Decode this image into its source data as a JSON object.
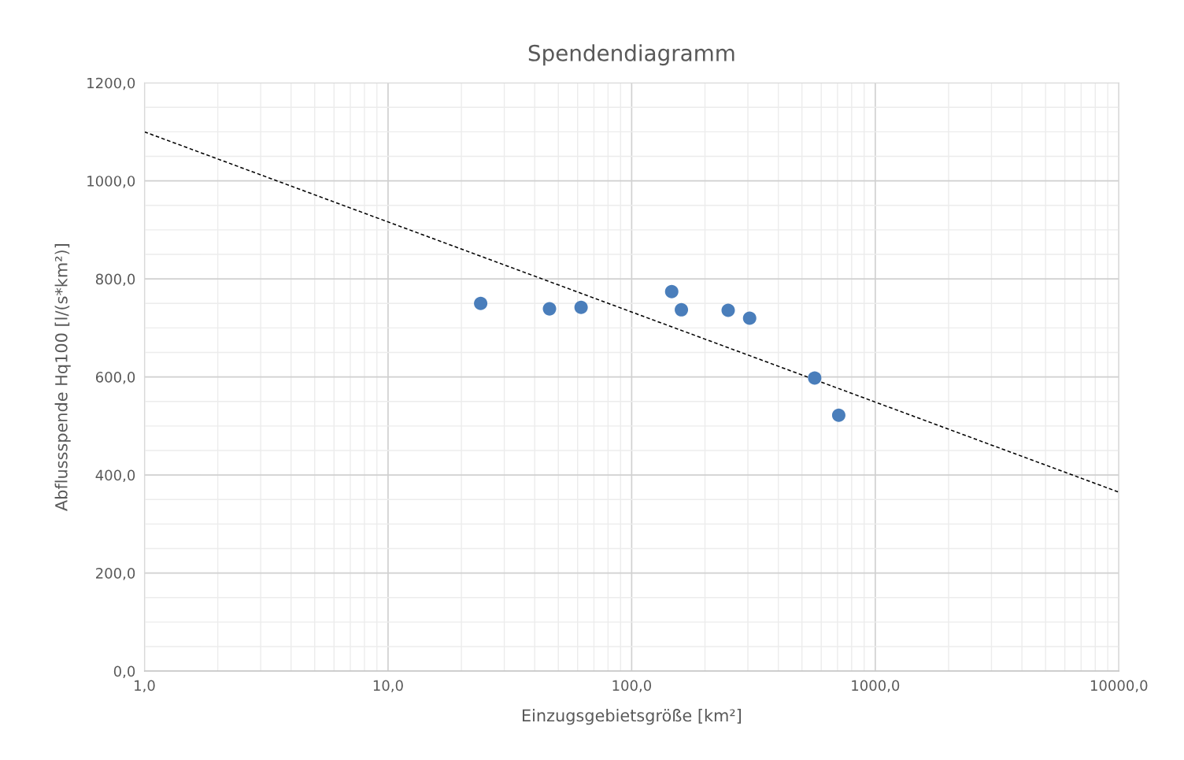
{
  "chart_data": {
    "type": "scatter",
    "title": "Spendendiagramm",
    "xlabel": "Einzugsgebietsgröße [km²]",
    "ylabel": "Abflussspende Hq100 [l/(s*km²)]",
    "log": "x",
    "grid": true,
    "legend": false,
    "marker": "circle",
    "xlim": [
      1,
      10000
    ],
    "xticks": [
      {
        "value": 1,
        "label": "1,0"
      },
      {
        "value": 10,
        "label": "10,0"
      },
      {
        "value": 100,
        "label": "100,0"
      },
      {
        "value": 1000,
        "label": "1000,0"
      },
      {
        "value": 10000,
        "label": "10000,0"
      }
    ],
    "ylim": [
      0,
      1200
    ],
    "yticks": [
      {
        "value": 0,
        "label": "0,0"
      },
      {
        "value": 200,
        "label": "200,0"
      },
      {
        "value": 400,
        "label": "400,0"
      },
      {
        "value": 600,
        "label": "600,0"
      },
      {
        "value": 800,
        "label": "800,0"
      },
      {
        "value": 1000,
        "label": "1000,0"
      },
      {
        "value": 1200,
        "label": "1200,0"
      }
    ],
    "series": [
      {
        "color": "#4a7ebb",
        "x": [
          24,
          46,
          62,
          146,
          160,
          249,
          305,
          564,
          708
        ],
        "values": [
          750,
          739,
          742,
          774,
          737,
          736,
          720,
          598,
          522
        ]
      },
      {
        "type": "line",
        "color": "#000000",
        "line_style": "dashed",
        "marker": "none",
        "x": [
          1,
          10000
        ],
        "values": [
          1100,
          365
        ]
      }
    ]
  }
}
